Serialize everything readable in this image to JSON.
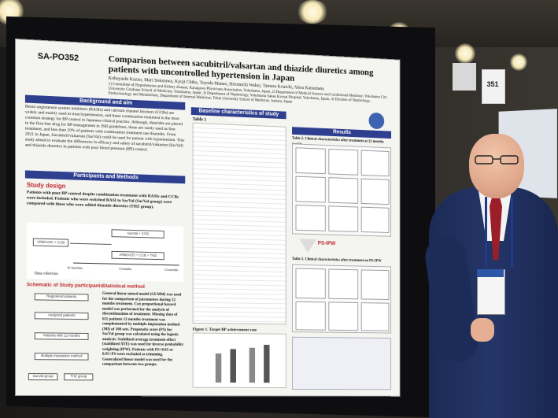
{
  "poster": {
    "id": "SA-PO352",
    "title": "Comparison between sacubitril/valsartan and thiazide diuretics among patients with uncontrolled hypertension in Japan",
    "authors": "Kobayashi Kazuo, Mari Sotozawa, Kyoji Chiba, Toyoda Manao, Hiromichi Wakui, Tamura Kouichi, Akira Katsumata",
    "affiliations": "1) Committee of Hypertension and Kidney disease, Kanagawa Physicians Association, Yokohama, Japan, 2) Department of Medical Science and Cardiorenal Medicine, Yokohama City University Graduate School of Medicine, Yokohama, Japan, 3) Department of Nephrology, Yokohama Sakae Kyosai Hospital, Yokohama, Japan, 4) Division of Nephrology, Endocrinology and Metabolism, Department of Internal Medicine, Tokai University School of Medicine, Isehara, Japan",
    "sections": {
      "background": "Background and aim",
      "background_text": "Renin-angiotensin system inhibitors (RASIs) and calcium channel blockers (CCBs) are widely and mainly used to treat hypertension, and these combination treatment is the most common strategy for BP control in Japanese clinical practice. Although, thiazides are placed in the first-line drug for BP management in JSH guidelines, these are rarely used as first treatment, and less than 10% of patients with combination treatment use thiazides. From 2021 in Japan, Sacubitril/valsartan (SacVal) could be used for patient with hypertension. This study aimed to evaluate the differences in efficacy and safety of sacubitril/valsartan (SacVal) and thiazide diuretics in patients with poor blood pressure (BP) control.",
      "participants": "Participants and Methods",
      "study_design": "Study design",
      "study_design_text": "Patients with poor BP control despite combination treatment with RASIs and CCBs were included. Patients who were switched RASI to SacVal (SacVal group) were compared with those who were added thiazide diuretics (THZ group).",
      "schematic": "Schematic of Study participants",
      "statistical": "Statistical method",
      "statistical_text": "General linear mixed model (GLMM) was used for the comparison of parameters during 12 months treatment. Cox proportional hazard model was performed for the analysis of discontinuation of treatment. Missing data of 611 patients 12 months treatment was complemented by multiple imputation method (MI) of 100 sets. Propensity score (PS) for SacVal group was calculated using the logistic analysis. Stabilized average treatment effect (stabilized ATE) was used for inverse probability weighting (IPW). Patients with PS<0.05 or 0.95<PS were excluded as trimming. Generalized linear model was used for the comparison between two groups.",
      "table1": "Table 1",
      "baseline": "Baseline characteristics of study patients",
      "results": "Results",
      "table2": "Table 2. Clinical characteristics after treatment at 12 months (n=??)",
      "ps_ipw": "PS-IPW",
      "table3": "Table 3. Clinical characteristics after treatment on PS-IPW",
      "figure1": "Figure 1. Target BP achievement rate"
    },
    "flow": {
      "arbi_ccb": "ARB/ACEI + CCB",
      "sacval_ccb": "SacVal + CCB",
      "arbi_ccb_thz": "ARB/ACEI + CCB + THZ",
      "at_baseline": "At baseline",
      "months4": "4 months",
      "months12": "12 months",
      "data_collection": "Data collection"
    },
    "schema_boxes": [
      "Registered patients",
      "Analyzed patients",
      "Patients with 12 months",
      "Multiple imputation method",
      "SacVal group",
      "THZ group"
    ]
  },
  "booth": {
    "number": "351"
  },
  "colors": {
    "section_head": "#2f3f8f",
    "accent_red": "#c0272d",
    "suit": "#243567",
    "tie": "#9a1f28"
  }
}
